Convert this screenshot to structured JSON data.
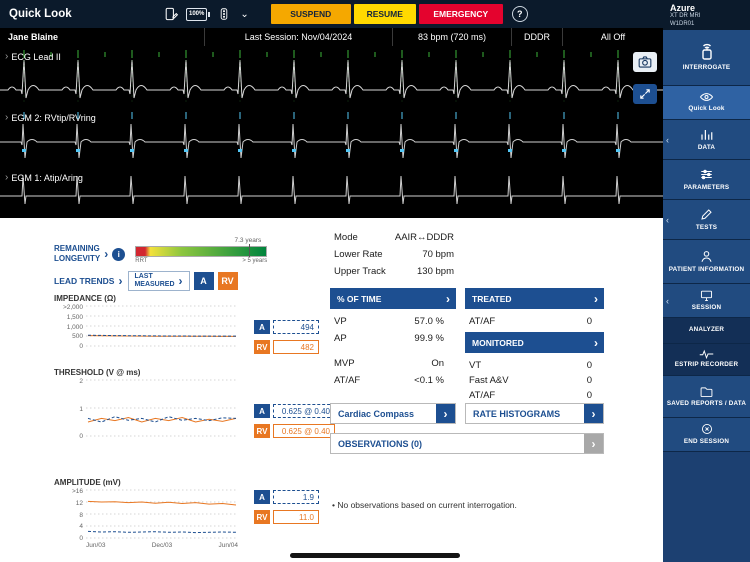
{
  "app": {
    "title": "Quick Look",
    "battery": "100%",
    "help": "?"
  },
  "toolbar": {
    "suspend": "SUSPEND",
    "resume": "RESUME",
    "emergency": "EMERGENCY"
  },
  "device": {
    "brand": "Azure",
    "model": "XT DR MRI",
    "serial": "W1DR01"
  },
  "patient_bar": {
    "name": "Jane Blaine",
    "last_session": "Last Session: Nov/04/2024",
    "rate": "83 bpm (720 ms)",
    "mode": "DDDR",
    "therapy": "All Off"
  },
  "ecg": {
    "leads": [
      {
        "label": "ECG Lead II"
      },
      {
        "label": "EGM 2: RVtip/RVring"
      },
      {
        "label": "EGM 1: Atip/Aring"
      }
    ]
  },
  "sidebar": {
    "items": [
      {
        "label": "INTERROGATE"
      },
      {
        "label": "Quick Look"
      },
      {
        "label": "DATA"
      },
      {
        "label": "PARAMETERS"
      },
      {
        "label": "TESTS"
      },
      {
        "label": "PATIENT INFORMATION"
      },
      {
        "label": "SESSION"
      },
      {
        "label": "ANALYZER"
      },
      {
        "label": "ESTRIP RECORDER"
      },
      {
        "label": "SAVED REPORTS / DATA"
      },
      {
        "label": "END SESSION"
      }
    ]
  },
  "longevity": {
    "line1": "REMAINING",
    "line2": "LONGEVITY",
    "value": "7.3 years",
    "rrt": "RRT",
    "scale_right": "> 5 years"
  },
  "lead_trends": {
    "title": "LEAD TRENDS",
    "last_measured_line1": "LAST",
    "last_measured_line2": "MEASURED",
    "a_label": "A",
    "rv_label": "RV",
    "x_ticks": [
      "Jun/03",
      "Dec/03",
      "Jun/04"
    ],
    "charts": [
      {
        "type": "line",
        "title": "IMPEDANCE (Ω)",
        "y_ticks": [
          ">2,000",
          "1,500",
          "1,000",
          "500",
          "0"
        ],
        "y_max": 2000,
        "a_value": "494",
        "rv_value": "482",
        "a_series": [
          540,
          530,
          522,
          515,
          510,
          505,
          500,
          498,
          496,
          495,
          494,
          494
        ],
        "rv_series": [
          520,
          512,
          505,
          500,
          495,
          490,
          488,
          486,
          484,
          483,
          482,
          482
        ]
      },
      {
        "type": "line",
        "title": "THRESHOLD (V @ ms)",
        "y_ticks": [
          "2",
          "1",
          "0"
        ],
        "y_max": 2,
        "a_value": "0.625 @ 0.40",
        "rv_value": "0.625 @ 0.40",
        "a_series": [
          0.63,
          0.5,
          0.69,
          0.56,
          0.63,
          0.5,
          0.69,
          0.56,
          0.63,
          0.55,
          0.65,
          0.63
        ],
        "rv_series": [
          0.5,
          0.63,
          0.55,
          0.66,
          0.5,
          0.63,
          0.55,
          0.66,
          0.5,
          0.6,
          0.52,
          0.63
        ]
      },
      {
        "type": "line",
        "title": "AMPLITUDE (mV)",
        "y_ticks": [
          ">16",
          "12",
          "8",
          "4",
          "0"
        ],
        "y_max": 16,
        "a_value": "1.9",
        "rv_value": "11.0",
        "a_series": [
          2.2,
          2.0,
          2.1,
          1.9,
          2.0,
          2.1,
          1.9,
          2.0,
          1.8,
          1.9,
          2.0,
          1.9
        ],
        "rv_series": [
          12.2,
          12.0,
          12.1,
          11.8,
          12.0,
          11.6,
          11.9,
          11.5,
          11.8,
          11.3,
          11.5,
          11.0
        ]
      }
    ]
  },
  "parameters": {
    "rows": [
      {
        "label": "Mode",
        "value": "AAIR↔DDDR"
      },
      {
        "label": "Lower Rate",
        "value": "70 bpm"
      },
      {
        "label": "Upper Track",
        "value": "130 bpm"
      }
    ]
  },
  "percent_of_time": {
    "header": "% OF TIME",
    "rows": [
      {
        "label": "VP",
        "value": "57.0 %"
      },
      {
        "label": "AP",
        "value": "99.9 %"
      }
    ],
    "rows2": [
      {
        "label": "MVP",
        "value": "On"
      },
      {
        "label": "AT/AF",
        "value": "<0.1 %"
      }
    ]
  },
  "episodes": {
    "treated_header": "TREATED",
    "treated_rows": [
      {
        "label": "AT/AF",
        "value": "0"
      }
    ],
    "monitored_header": "MONITORED",
    "monitored_rows": [
      {
        "label": "VT",
        "value": "0"
      },
      {
        "label": "Fast A&V",
        "value": "0"
      },
      {
        "label": "AT/AF",
        "value": "0"
      }
    ]
  },
  "buttons": {
    "cardiac_compass": "Cardiac Compass",
    "rate_histograms": "RATE HISTOGRAMS",
    "observations": "OBSERVATIONS (0)"
  },
  "notes": {
    "observation": "No observations based on current interrogation."
  },
  "colors": {
    "accent_blue": "#1d4f91",
    "rv_orange": "#e87722",
    "suspend": "#f5a800",
    "resume": "#ffd900",
    "emergency": "#e4032e",
    "ecg_trace": "#d9d9d9",
    "marker_green": "#3bb33a",
    "marker_cyan": "#53c7f5"
  }
}
